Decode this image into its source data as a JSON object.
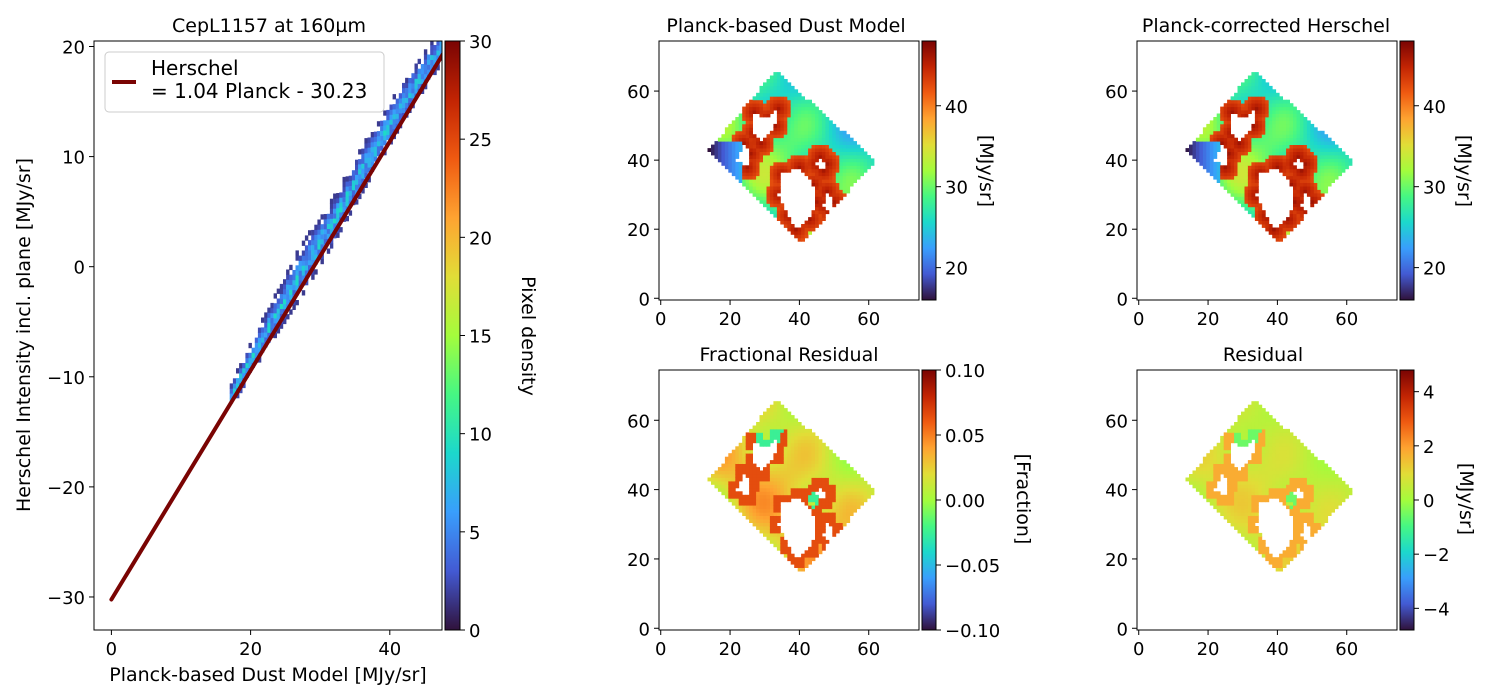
{
  "chart_data": [
    {
      "id": "scatter",
      "type": "heatmap",
      "subtype": "2d-density-with-fit-line",
      "title": "CepL1157 at 160µm",
      "xlabel": "Planck-based Dust Model [MJy/sr]",
      "ylabel": "Herschel Intensity incl. plane [MJy/sr]",
      "xlim": [
        -2.5,
        47.5
      ],
      "ylim": [
        -33,
        20.5
      ],
      "xticks": [
        0,
        20,
        40
      ],
      "yticks": [
        -30,
        -20,
        -10,
        0,
        10,
        20
      ],
      "density_band": {
        "x": [
          17,
          22,
          27,
          32,
          37,
          42,
          47.5
        ],
        "y_center": [
          -12.0,
          -6.2,
          -0.8,
          4.2,
          9.8,
          15.0,
          20.0
        ],
        "half_width": [
          1.0,
          1.5,
          2.0,
          1.8,
          1.8,
          1.6,
          1.4
        ],
        "peak_density": 8
      },
      "fit_line": {
        "label": "Herschel\n= 1.04 Planck - 30.23",
        "slope": 1.04,
        "intercept": -30.23,
        "x_range": [
          0,
          48
        ],
        "color": "#7a0403"
      },
      "legend_position": "top-left",
      "colorbar": {
        "label": "Pixel density",
        "range": [
          0,
          30
        ],
        "ticks": [
          0,
          5,
          10,
          15,
          20,
          25,
          30
        ],
        "colormap": "turbo"
      }
    },
    {
      "id": "dust",
      "type": "heatmap",
      "title": "Planck-based Dust Model",
      "xlim": [
        -0.5,
        74.5
      ],
      "ylim": [
        -0.5,
        74.5
      ],
      "xticks": [
        0,
        20,
        40,
        60
      ],
      "yticks": [
        0,
        20,
        40,
        60
      ],
      "colorbar": {
        "label": "[MJy/sr]",
        "range": [
          16,
          48
        ],
        "ticks": [
          20,
          30,
          40
        ],
        "colormap": "turbo"
      },
      "value_model": {
        "base": 28,
        "amplitude": 11,
        "sign": 1,
        "bias": 0
      }
    },
    {
      "id": "corrected",
      "type": "heatmap",
      "title": "Planck-corrected Herschel",
      "xlim": [
        -0.5,
        74.5
      ],
      "ylim": [
        -0.5,
        74.5
      ],
      "xticks": [
        0,
        20,
        40,
        60
      ],
      "yticks": [
        0,
        20,
        40,
        60
      ],
      "colorbar": {
        "label": "[MJy/sr]",
        "range": [
          16,
          48
        ],
        "ticks": [
          20,
          30,
          40
        ],
        "colormap": "turbo"
      },
      "value_model": {
        "base": 28,
        "amplitude": 11,
        "sign": 1,
        "bias": 0.3
      }
    },
    {
      "id": "fraction",
      "type": "heatmap",
      "title": "Fractional Residual",
      "xlim": [
        -0.5,
        74.5
      ],
      "ylim": [
        -0.5,
        74.5
      ],
      "xticks": [
        0,
        20,
        40,
        60
      ],
      "yticks": [
        0,
        20,
        40,
        60
      ],
      "colorbar": {
        "label": "[Fraction]",
        "range": [
          -0.1,
          0.1
        ],
        "ticks": [
          -0.1,
          -0.05,
          0.0,
          0.05,
          0.1
        ],
        "tick_labels": [
          "−0.10",
          "−0.05",
          "0.00",
          "0.05",
          "0.10"
        ],
        "colormap": "turbo"
      },
      "value_model": {
        "base": 0.02,
        "amplitude": 0.05,
        "sign": 1,
        "bias": 0
      }
    },
    {
      "id": "residual",
      "type": "heatmap",
      "title": "Residual",
      "xlim": [
        -0.5,
        74.5
      ],
      "ylim": [
        -0.5,
        74.5
      ],
      "xticks": [
        0,
        20,
        40,
        60
      ],
      "yticks": [
        0,
        20,
        40,
        60
      ],
      "colorbar": {
        "label": "[MJy/sr]",
        "range": [
          -4.8,
          4.8
        ],
        "ticks": [
          -4,
          -2,
          0,
          2,
          4
        ],
        "tick_labels": [
          "−4",
          "−2",
          "0",
          "2",
          "4"
        ],
        "colormap": "turbo"
      },
      "value_model": {
        "base": 0.6,
        "amplitude": 1.3,
        "sign": 1,
        "bias": 0
      }
    }
  ],
  "map_shape": {
    "polygon": [
      [
        14,
        43
      ],
      [
        33,
        66
      ],
      [
        62,
        40
      ],
      [
        41,
        16
      ]
    ],
    "holes": [
      [
        [
          27,
          54
        ],
        [
          31,
          52
        ],
        [
          34,
          55
        ],
        [
          33,
          50
        ],
        [
          29,
          45
        ],
        [
          27,
          48
        ]
      ],
      [
        [
          22,
          40
        ],
        [
          25,
          38
        ],
        [
          26,
          42
        ],
        [
          24,
          45
        ]
      ],
      [
        [
          40,
          38
        ],
        [
          44,
          33
        ],
        [
          45,
          28
        ],
        [
          43,
          23
        ],
        [
          39,
          20
        ],
        [
          37,
          24
        ],
        [
          34,
          30
        ],
        [
          35,
          36
        ]
      ],
      [
        [
          48,
          31
        ],
        [
          50,
          28
        ],
        [
          49,
          25
        ],
        [
          47,
          27
        ]
      ],
      [
        [
          46,
          41
        ],
        [
          48,
          39
        ],
        [
          47,
          37
        ],
        [
          45,
          39
        ]
      ]
    ]
  }
}
